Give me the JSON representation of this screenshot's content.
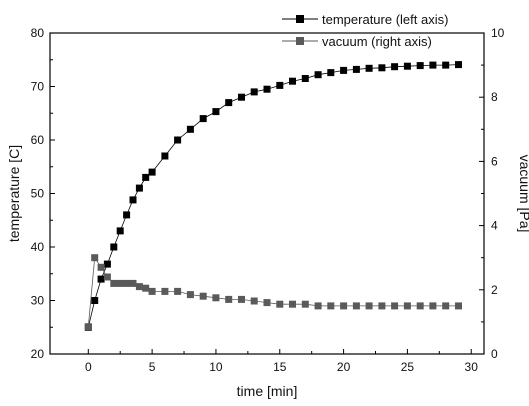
{
  "chart_data": {
    "type": "scatter",
    "title": "",
    "xlabel": "time [min]",
    "ylabel_left": "temperature [C]",
    "ylabel_right": "vacuum [Pa]",
    "xlim": [
      -3,
      31
    ],
    "ylim_left": [
      20,
      80
    ],
    "ylim_right": [
      0,
      10
    ],
    "xticks": [
      "0",
      "5",
      "10",
      "15",
      "20",
      "25",
      "30"
    ],
    "yticks_left": [
      "20",
      "30",
      "40",
      "50",
      "60",
      "70",
      "80"
    ],
    "yticks_right": [
      "0",
      "2",
      "4",
      "6",
      "8",
      "10"
    ],
    "grid": false,
    "legend_position": "top-right",
    "series": [
      {
        "name": "temperature (left axis)",
        "axis": "left",
        "color": "#000000",
        "marker": "square",
        "x": [
          0,
          0.5,
          1,
          1.5,
          2,
          2.5,
          3,
          3.5,
          4,
          4.5,
          5,
          6,
          7,
          8,
          9,
          10,
          11,
          12,
          13,
          14,
          15,
          16,
          17,
          18,
          19,
          20,
          21,
          22,
          23,
          24,
          25,
          26,
          27,
          28,
          29
        ],
        "y": [
          25,
          30,
          34,
          36.8,
          40,
          43,
          46,
          48.8,
          51,
          53,
          54,
          57,
          60,
          62,
          64,
          65.3,
          67,
          68,
          69,
          69.5,
          70.2,
          71,
          71.5,
          72.2,
          72.6,
          73,
          73.2,
          73.4,
          73.5,
          73.7,
          73.8,
          73.9,
          74,
          74,
          74.1
        ]
      },
      {
        "name": "vacuum (right axis)",
        "axis": "right",
        "color": "#5a5a5a",
        "marker": "square",
        "x": [
          0,
          0.5,
          1,
          1.5,
          2,
          2.5,
          3,
          3.5,
          4,
          4.5,
          5,
          6,
          7,
          8,
          9,
          10,
          11,
          12,
          13,
          14,
          15,
          16,
          17,
          18,
          19,
          20,
          21,
          22,
          23,
          24,
          25,
          26,
          27,
          28,
          29
        ],
        "y": [
          0.85,
          3.0,
          2.7,
          2.4,
          2.2,
          2.2,
          2.2,
          2.2,
          2.1,
          2.05,
          1.95,
          1.95,
          1.95,
          1.85,
          1.8,
          1.75,
          1.7,
          1.7,
          1.65,
          1.6,
          1.55,
          1.55,
          1.55,
          1.5,
          1.5,
          1.5,
          1.5,
          1.5,
          1.5,
          1.5,
          1.5,
          1.5,
          1.5,
          1.5,
          1.5
        ]
      }
    ]
  }
}
